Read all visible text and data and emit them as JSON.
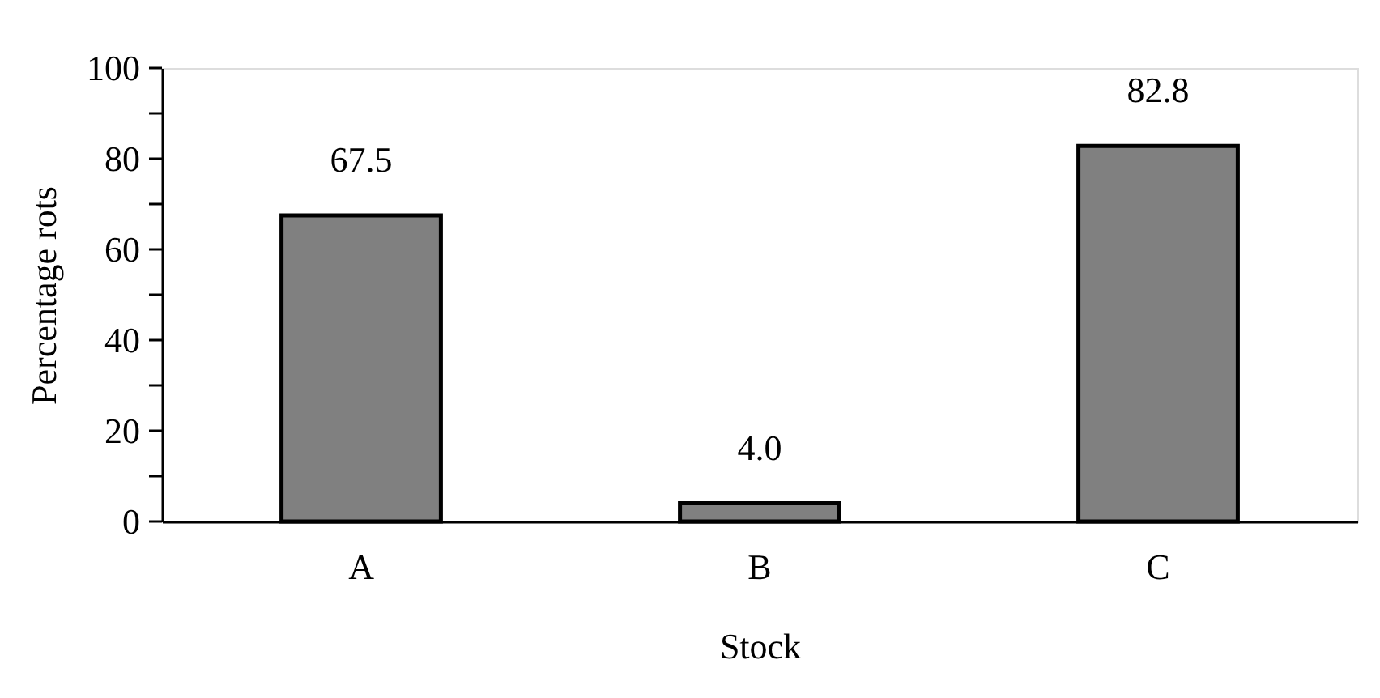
{
  "chart_data": {
    "type": "bar",
    "xlabel": "Stock",
    "ylabel": "Percentage rots",
    "categories": [
      "A",
      "B",
      "C"
    ],
    "values": [
      67.5,
      4.0,
      82.8
    ],
    "value_labels": [
      "67.5",
      "4.0",
      "82.8"
    ],
    "color": "#808080",
    "ylim": [
      0,
      100
    ],
    "yticks": [
      0,
      {
        "value": 10,
        "label": null
      },
      20,
      {
        "value": 30,
        "label": null
      },
      40,
      {
        "value": 50,
        "label": null
      },
      60,
      {
        "value": 70,
        "label": null
      },
      80,
      {
        "value": 90,
        "label": null
      },
      100
    ],
    "grid": false
  }
}
